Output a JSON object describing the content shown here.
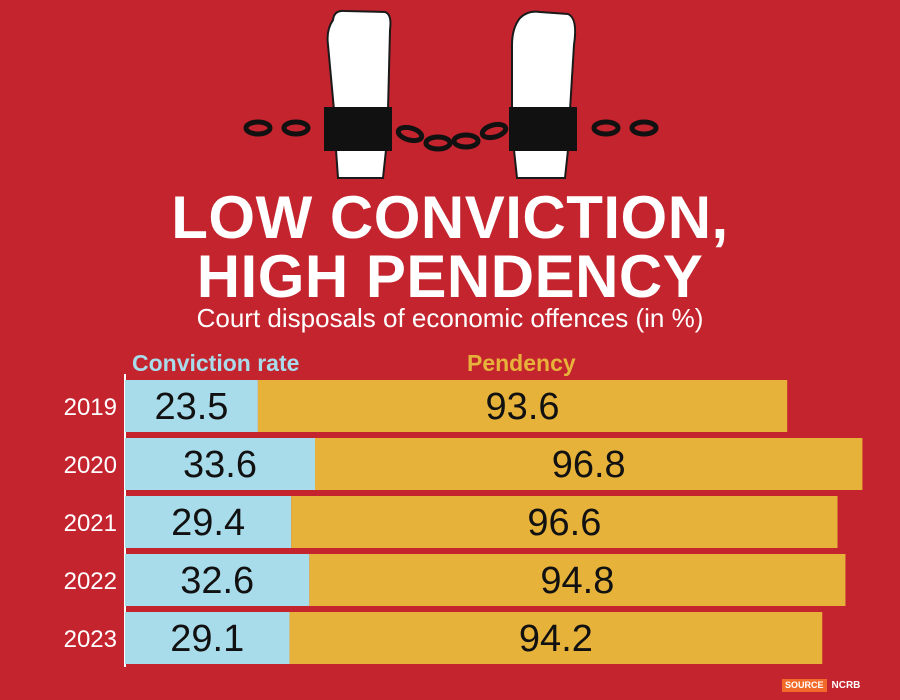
{
  "title": {
    "line1": "LOW CONVICTION,",
    "line2": "HIGH PENDENCY"
  },
  "subtitle": "Court disposals of economic offences (in %)",
  "legend": {
    "conviction": "Conviction rate",
    "pendency": "Pendency"
  },
  "source": {
    "label": "SOURCE",
    "value": "NCRB"
  },
  "colors": {
    "background": "#c4242e",
    "conviction": "#a9dceb",
    "pendency": "#e7b23a",
    "text": "#ffffff",
    "source_tag": "#f26a2a"
  },
  "icons": [
    "handcuffs-icon",
    "raised-fist-icon"
  ],
  "chart_data": {
    "type": "bar",
    "orientation": "horizontal",
    "stacked": true,
    "categories": [
      "2019",
      "2020",
      "2021",
      "2022",
      "2023"
    ],
    "series": [
      {
        "name": "Conviction rate",
        "values": [
          23.5,
          33.6,
          29.4,
          32.6,
          29.1
        ]
      },
      {
        "name": "Pendency",
        "values": [
          93.6,
          96.8,
          96.6,
          94.8,
          94.2
        ]
      }
    ],
    "title": "LOW CONVICTION, HIGH PENDENCY",
    "subtitle": "Court disposals of economic offences (in %)",
    "xlabel": "",
    "ylabel": "",
    "grid": false,
    "legend": "top"
  }
}
